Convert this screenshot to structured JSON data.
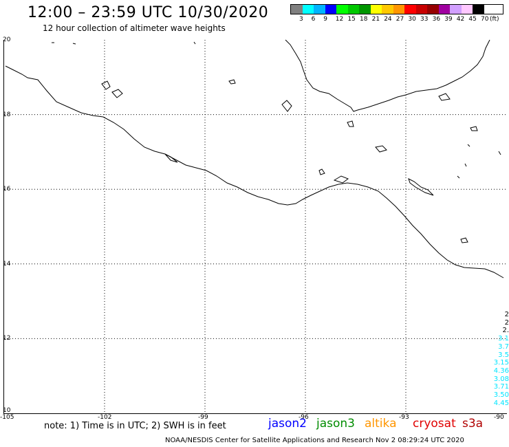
{
  "header": {
    "title": "12:00 – 23:59 UTC 10/30/2020",
    "subtitle": "12 hour collection of altimeter wave heights"
  },
  "colorbar": {
    "colors": [
      "#808080",
      "#00ffff",
      "#00b4ff",
      "#0000ff",
      "#00ff00",
      "#00c800",
      "#009600",
      "#ffff00",
      "#ffc800",
      "#ff9600",
      "#ff0000",
      "#c80000",
      "#960000",
      "#a000a0",
      "#d2a0ff",
      "#ffc8ff",
      "#000000"
    ],
    "labels": [
      "3",
      "6",
      "9",
      "12",
      "15",
      "18",
      "21",
      "24",
      "27",
      "30",
      "33",
      "36",
      "39",
      "42",
      "45",
      "70"
    ],
    "unit": "(ft)"
  },
  "map": {
    "lon_range": [
      -105,
      -90
    ],
    "lat_range": [
      10,
      20
    ],
    "lon_ticks": [
      "-105",
      "-102",
      "-99",
      "-96",
      "-93",
      "-90"
    ],
    "lat_ticks": [
      "20",
      "18",
      "16",
      "14",
      "12",
      "10"
    ],
    "grid": "dotted",
    "line_color": "#000000"
  },
  "swh_readouts": {
    "color": "#00e5ff",
    "black_values": [
      "2",
      "2",
      "2."
    ],
    "cyan_values": [
      "3.1",
      "3.7",
      "3.5",
      "3.15",
      "4.36",
      "3.08",
      "3.71",
      "3.50",
      "4.45"
    ]
  },
  "footer": {
    "note": "note: 1) Time is in UTC; 2) SWH is in feet",
    "satellites": [
      {
        "name": "jason2",
        "color": "#0000ff"
      },
      {
        "name": "jason3",
        "color": "#008c00"
      },
      {
        "name": "altika",
        "color": "#ff9600"
      },
      {
        "name": "cryosat",
        "color": "#e00000"
      },
      {
        "name": "s3a",
        "color": "#b00000"
      }
    ],
    "credit": "NOAA/NESDIS Center for Satellite Applications and Research    Nov  2 08:29:24 UTC 2020"
  }
}
